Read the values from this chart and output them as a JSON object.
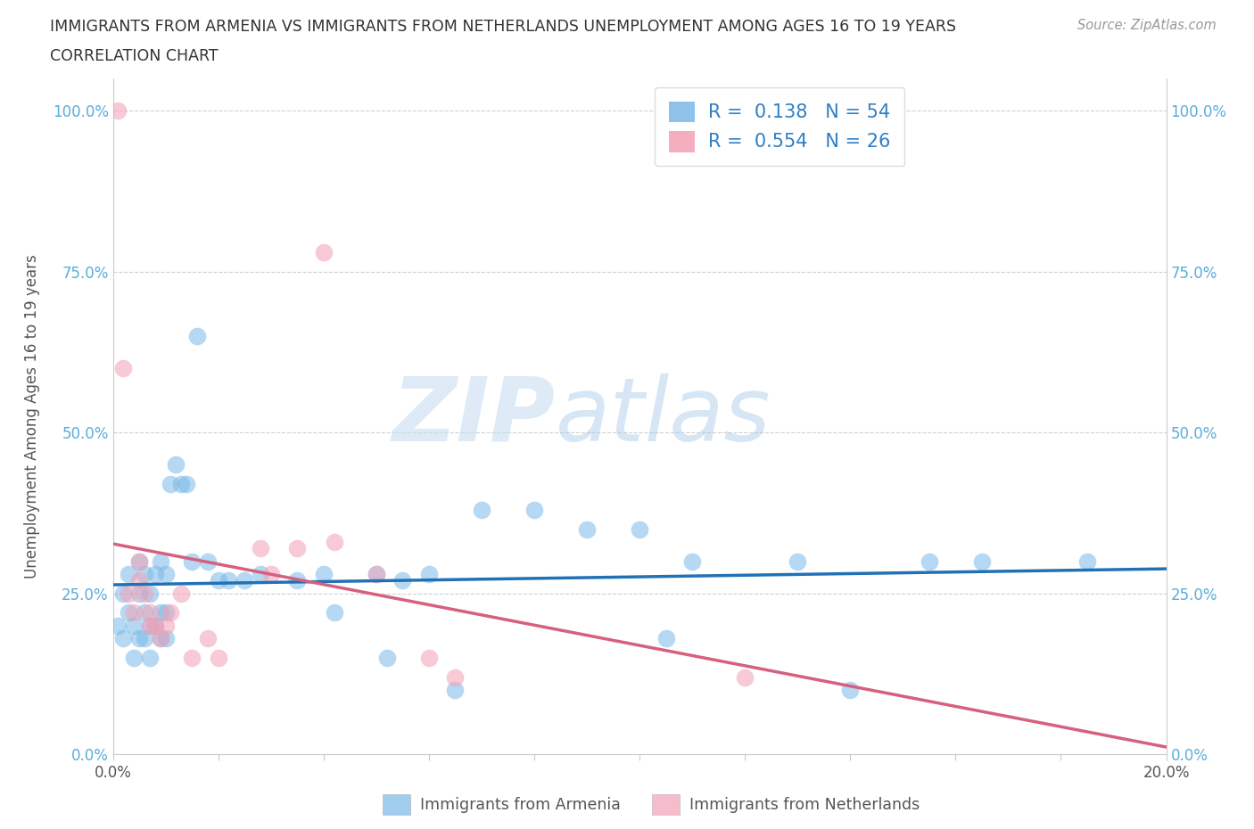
{
  "title_line1": "IMMIGRANTS FROM ARMENIA VS IMMIGRANTS FROM NETHERLANDS UNEMPLOYMENT AMONG AGES 16 TO 19 YEARS",
  "title_line2": "CORRELATION CHART",
  "source_text": "Source: ZipAtlas.com",
  "ylabel": "Unemployment Among Ages 16 to 19 years",
  "xlabel_armenia": "Immigrants from Armenia",
  "xlabel_netherlands": "Immigrants from Netherlands",
  "watermark_zip": "ZIP",
  "watermark_atlas": "atlas",
  "armenia_R": 0.138,
  "armenia_N": 54,
  "netherlands_R": 0.554,
  "netherlands_N": 26,
  "xlim_max": 0.2,
  "ylim_max": 1.05,
  "yticks": [
    0.0,
    0.25,
    0.5,
    0.75,
    1.0
  ],
  "ytick_labels": [
    "0.0%",
    "25.0%",
    "50.0%",
    "75.0%",
    "100.0%"
  ],
  "xtick_labels": [
    "0.0%",
    "",
    "",
    "",
    "",
    "",
    "",
    "",
    "",
    "",
    "20.0%"
  ],
  "color_armenia": "#7ab8e8",
  "color_netherlands": "#f4a0b5",
  "line_color_armenia": "#2171b5",
  "line_color_netherlands": "#d6607f",
  "bg_color": "#ffffff",
  "grid_color": "#d0d0d0",
  "title_color": "#333333",
  "tick_color_y": "#5aacdb",
  "tick_color_x": "#555555",
  "legend_text_color": "#2e7fc5",
  "armenia_x": [
    0.001,
    0.002,
    0.002,
    0.003,
    0.003,
    0.004,
    0.004,
    0.005,
    0.005,
    0.005,
    0.006,
    0.006,
    0.006,
    0.007,
    0.007,
    0.007,
    0.008,
    0.008,
    0.009,
    0.009,
    0.009,
    0.01,
    0.01,
    0.01,
    0.011,
    0.012,
    0.013,
    0.014,
    0.015,
    0.016,
    0.018,
    0.02,
    0.022,
    0.025,
    0.028,
    0.035,
    0.04,
    0.042,
    0.05,
    0.052,
    0.055,
    0.06,
    0.065,
    0.07,
    0.08,
    0.09,
    0.1,
    0.105,
    0.11,
    0.13,
    0.14,
    0.155,
    0.165,
    0.185
  ],
  "armenia_y": [
    0.2,
    0.18,
    0.25,
    0.22,
    0.28,
    0.15,
    0.2,
    0.18,
    0.25,
    0.3,
    0.18,
    0.22,
    0.28,
    0.15,
    0.2,
    0.25,
    0.2,
    0.28,
    0.18,
    0.22,
    0.3,
    0.18,
    0.22,
    0.28,
    0.42,
    0.45,
    0.42,
    0.42,
    0.3,
    0.65,
    0.3,
    0.27,
    0.27,
    0.27,
    0.28,
    0.27,
    0.28,
    0.22,
    0.28,
    0.15,
    0.27,
    0.28,
    0.1,
    0.38,
    0.38,
    0.35,
    0.35,
    0.18,
    0.3,
    0.3,
    0.1,
    0.3,
    0.3,
    0.3
  ],
  "netherlands_x": [
    0.001,
    0.002,
    0.003,
    0.004,
    0.005,
    0.005,
    0.006,
    0.007,
    0.007,
    0.008,
    0.009,
    0.01,
    0.011,
    0.013,
    0.015,
    0.018,
    0.02,
    0.028,
    0.03,
    0.035,
    0.04,
    0.042,
    0.05,
    0.06,
    0.065,
    0.12
  ],
  "netherlands_y": [
    1.0,
    0.6,
    0.25,
    0.22,
    0.27,
    0.3,
    0.25,
    0.22,
    0.2,
    0.2,
    0.18,
    0.2,
    0.22,
    0.25,
    0.15,
    0.18,
    0.15,
    0.32,
    0.28,
    0.32,
    0.78,
    0.33,
    0.28,
    0.15,
    0.12,
    0.12
  ]
}
